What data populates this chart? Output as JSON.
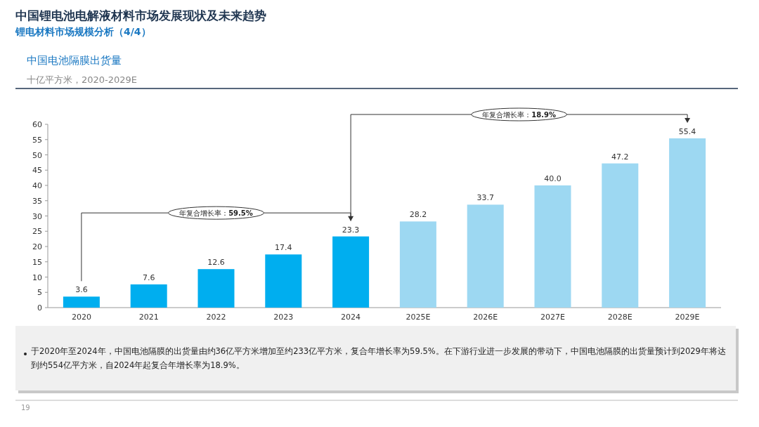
{
  "chart_data": {
    "type": "bar",
    "title": "中国电池隔膜出货量",
    "ylabel": "十亿平方米，2020-2029E",
    "categories": [
      "2020",
      "2021",
      "2022",
      "2023",
      "2024",
      "2025E",
      "2026E",
      "2027E",
      "2028E",
      "2029E"
    ],
    "values": [
      3.6,
      7.6,
      12.6,
      17.4,
      23.3,
      28.2,
      33.7,
      40.0,
      47.2,
      55.4
    ],
    "colors": [
      "#00aeef",
      "#00aeef",
      "#00aeef",
      "#00aeef",
      "#00aeef",
      "#9dd8f2",
      "#9dd8f2",
      "#9dd8f2",
      "#9dd8f2",
      "#9dd8f2"
    ],
    "ylim": [
      0,
      60
    ],
    "yticks": [
      0,
      5,
      10,
      15,
      20,
      25,
      30,
      35,
      40,
      45,
      50,
      55,
      60
    ],
    "value_labels": [
      "3.6",
      "7.6",
      "12.6",
      "17.4",
      "23.3",
      "28.2",
      "33.7",
      "40.0",
      "47.2",
      "55.4"
    ],
    "annotations": [
      "中国锂电池电解液材料市场发展现状及未来趋势",
      "锂电材料市场规模分析（4/4）",
      "年复合增长率：**59.5%**",
      "年复合增长率：**18.9%**",
      "于2020年至2024年，中国电池隔膜的出货量由约36亿平方米增加至约233亿平方米，复合年增长率为59.5%。在下游行业进一步发展的带动下，中国电池隔膜的出货量预计到2029年将达到约554亿平方米，自2024年起复合年增长率为18.9%。",
      "19"
    ]
  }
}
